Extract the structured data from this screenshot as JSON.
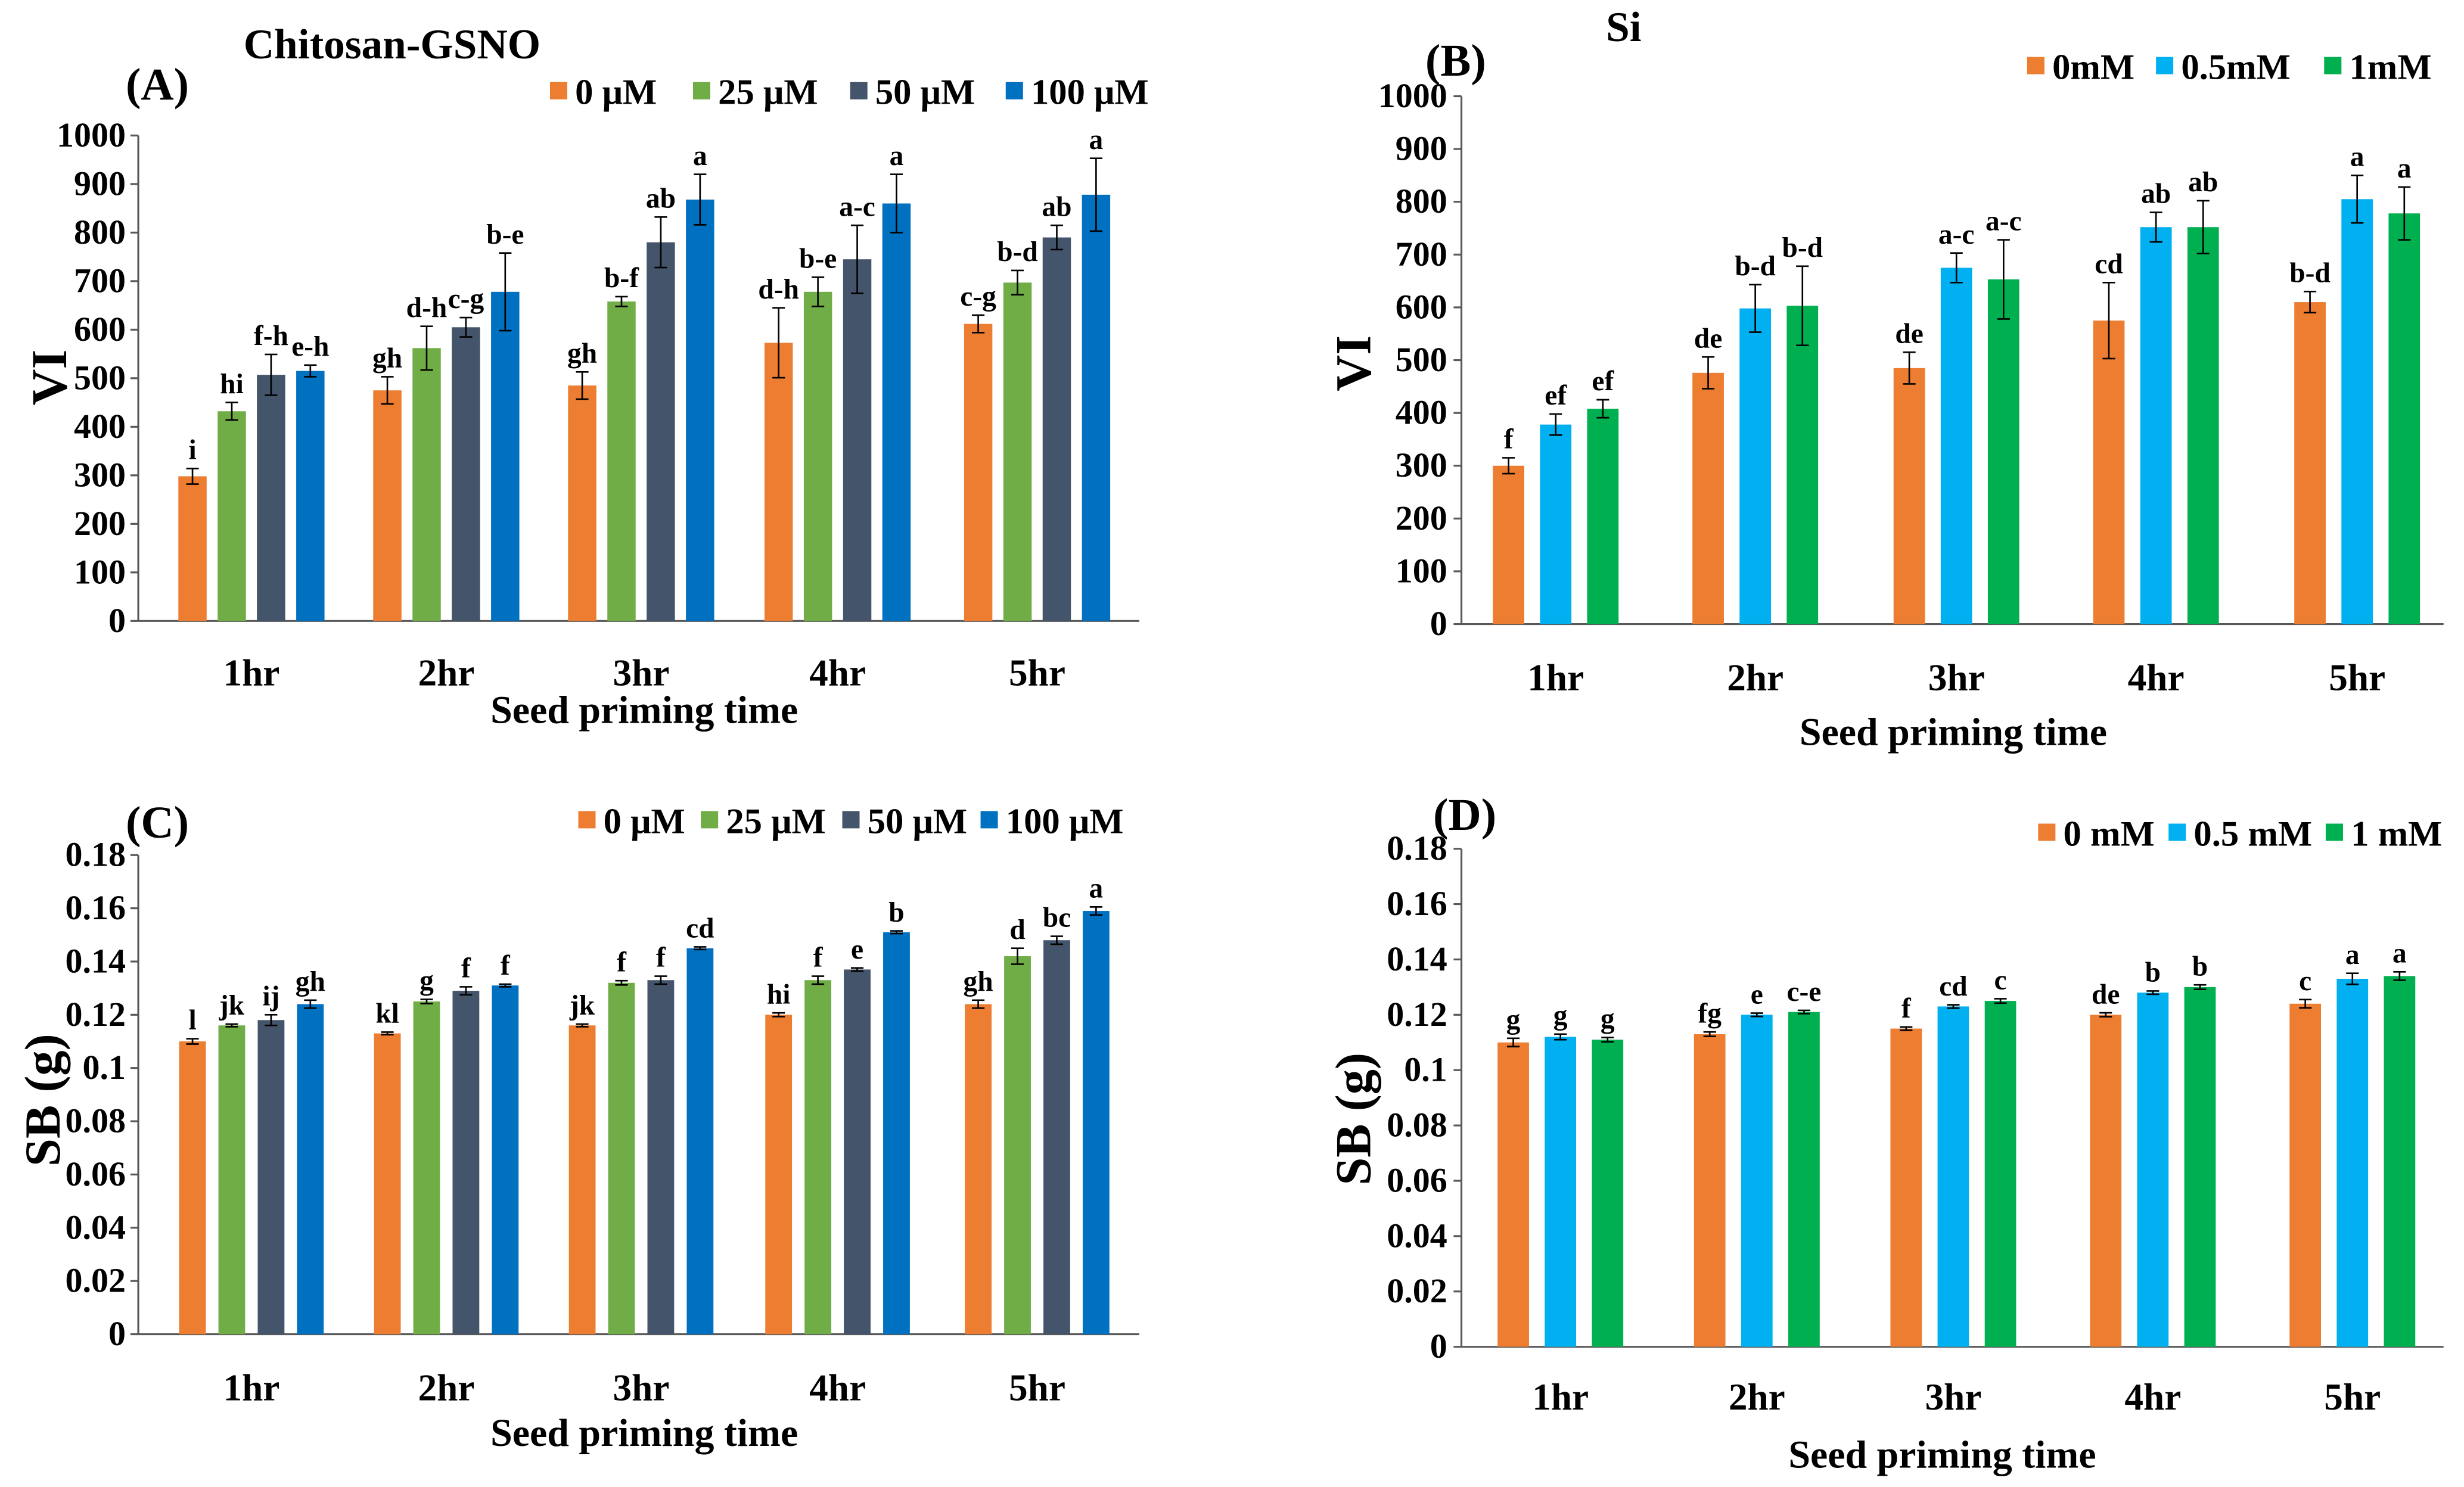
{
  "chart_data": [
    {
      "panel": "(A)",
      "title": "Chitosan-GSNO",
      "type": "bar",
      "categories": [
        "1hr",
        "2hr",
        "3hr",
        "4hr",
        "5hr"
      ],
      "xlabel": "Seed priming time",
      "ylabel": "VI",
      "ylim": [
        0,
        1000
      ],
      "yticks": [
        0,
        100,
        200,
        300,
        400,
        500,
        600,
        700,
        800,
        900,
        1000
      ],
      "series": [
        {
          "name": "0 μM",
          "color": "#ED7D31",
          "values": [
            298,
            475,
            485,
            573,
            612
          ],
          "errors": [
            16,
            28,
            28,
            72,
            18
          ],
          "letters": [
            "i",
            "gh",
            "gh",
            "d-h",
            "c-g"
          ]
        },
        {
          "name": "25 μM",
          "color": "#70AD47",
          "values": [
            432,
            562,
            658,
            678,
            697
          ],
          "errors": [
            18,
            45,
            10,
            30,
            25
          ],
          "letters": [
            "hi",
            "d-h",
            "b-f",
            "b-e",
            "b-d"
          ]
        },
        {
          "name": "50 μM",
          "color": "#44546A",
          "values": [
            507,
            605,
            780,
            745,
            790
          ],
          "errors": [
            42,
            20,
            52,
            70,
            25
          ],
          "letters": [
            "f-h",
            "c-g",
            "ab",
            "a-c",
            "ab"
          ]
        },
        {
          "name": "100 μM",
          "color": "#0070C0",
          "values": [
            515,
            678,
            868,
            860,
            878
          ],
          "errors": [
            12,
            80,
            52,
            60,
            75
          ],
          "letters": [
            "e-h",
            "b-e",
            "a",
            "a",
            "a"
          ]
        }
      ]
    },
    {
      "panel": "(B)",
      "title": "Si",
      "type": "bar",
      "categories": [
        "1hr",
        "2hr",
        "3hr",
        "4hr",
        "5hr"
      ],
      "xlabel": "Seed priming time",
      "ylabel": "VI",
      "ylim": [
        0,
        1000
      ],
      "yticks": [
        0,
        100,
        200,
        300,
        400,
        500,
        600,
        700,
        800,
        900,
        1000
      ],
      "series": [
        {
          "name": "0mM",
          "color": "#ED7D31",
          "values": [
            300,
            476,
            485,
            575,
            610
          ],
          "errors": [
            15,
            30,
            30,
            72,
            20
          ],
          "letters": [
            "f",
            "de",
            "de",
            "cd",
            "b-d"
          ]
        },
        {
          "name": "0.5mM",
          "color": "#00B0F0",
          "values": [
            378,
            598,
            675,
            752,
            805
          ],
          "errors": [
            20,
            45,
            28,
            28,
            45
          ],
          "letters": [
            "ef",
            "b-d",
            "a-c",
            "ab",
            "a"
          ]
        },
        {
          "name": "1mM",
          "color": "#00B050",
          "values": [
            408,
            603,
            653,
            752,
            778
          ],
          "errors": [
            17,
            75,
            75,
            50,
            50
          ],
          "letters": [
            "ef",
            "b-d",
            "a-c",
            "ab",
            "a"
          ]
        }
      ]
    },
    {
      "panel": "(C)",
      "type": "bar",
      "categories": [
        "1hr",
        "2hr",
        "3hr",
        "4hr",
        "5hr"
      ],
      "xlabel": "Seed priming time",
      "ylabel": "SB (g)",
      "ylim": [
        0,
        0.18
      ],
      "yticks": [
        0,
        0.02,
        0.04,
        0.06,
        0.08,
        0.1,
        0.12,
        0.14,
        0.16,
        0.18
      ],
      "series": [
        {
          "name": "0 μM",
          "color": "#ED7D31",
          "values": [
            0.11,
            0.113,
            0.116,
            0.12,
            0.124
          ],
          "errors": [
            0.001,
            0.0005,
            0.0005,
            0.0007,
            0.0015
          ],
          "letters": [
            "l",
            "kl",
            "jk",
            "hi",
            "gh"
          ]
        },
        {
          "name": "25 μM",
          "color": "#70AD47",
          "values": [
            0.116,
            0.125,
            0.132,
            0.133,
            0.142
          ],
          "errors": [
            0.0005,
            0.0008,
            0.0008,
            0.0015,
            0.003
          ],
          "letters": [
            "jk",
            "g",
            "f",
            "f",
            "d"
          ]
        },
        {
          "name": "50 μM",
          "color": "#44546A",
          "values": [
            0.118,
            0.129,
            0.133,
            0.137,
            0.148
          ],
          "errors": [
            0.002,
            0.0015,
            0.0015,
            0.0006,
            0.0015
          ],
          "letters": [
            "ij",
            "f",
            "f",
            "e",
            "bc"
          ]
        },
        {
          "name": "100 μM",
          "color": "#0070C0",
          "values": [
            0.124,
            0.131,
            0.145,
            0.151,
            0.159
          ],
          "errors": [
            0.0015,
            0.0005,
            0.0005,
            0.0005,
            0.0015
          ],
          "letters": [
            "gh",
            "f",
            "cd",
            "b",
            "a"
          ]
        }
      ]
    },
    {
      "panel": "(D)",
      "type": "bar",
      "categories": [
        "1hr",
        "2hr",
        "3hr",
        "4hr",
        "5hr"
      ],
      "xlabel": "Seed priming time",
      "ylabel": "SB (g)",
      "ylim": [
        0,
        0.18
      ],
      "yticks": [
        0,
        0.02,
        0.04,
        0.06,
        0.08,
        0.1,
        0.12,
        0.14,
        0.16,
        0.18
      ],
      "series": [
        {
          "name": "0 mM",
          "color": "#ED7D31",
          "values": [
            0.11,
            0.113,
            0.115,
            0.12,
            0.124
          ],
          "errors": [
            0.0015,
            0.0008,
            0.0006,
            0.0007,
            0.0015
          ],
          "letters": [
            "g",
            "fg",
            "f",
            "de",
            "c"
          ]
        },
        {
          "name": "0.5 mM",
          "color": "#00B0F0",
          "values": [
            0.112,
            0.12,
            0.123,
            0.128,
            0.133
          ],
          "errors": [
            0.001,
            0.0006,
            0.0006,
            0.0006,
            0.002
          ],
          "letters": [
            "g",
            "e",
            "cd",
            "b",
            "a"
          ]
        },
        {
          "name": "1 mM",
          "color": "#00B050",
          "values": [
            0.111,
            0.121,
            0.125,
            0.13,
            0.134
          ],
          "errors": [
            0.0008,
            0.0006,
            0.0008,
            0.0008,
            0.0015
          ],
          "letters": [
            "g",
            "c-e",
            "c",
            "b",
            "a"
          ]
        }
      ]
    }
  ]
}
